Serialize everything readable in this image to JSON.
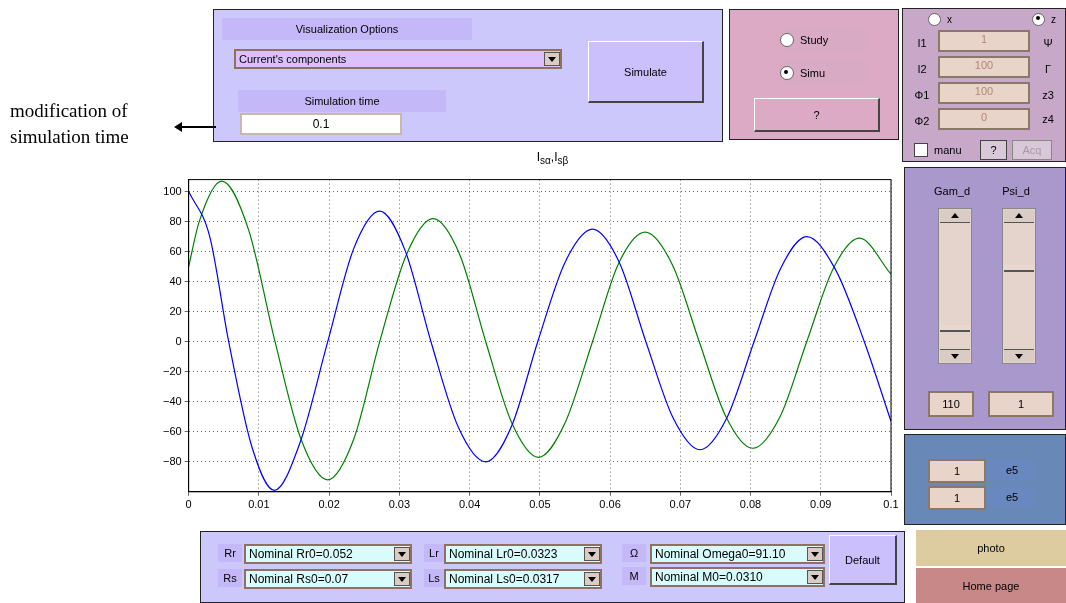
{
  "chart_data": [
    {
      "type": "line",
      "title": "I$_{sα}$,I$_{sβ}$",
      "xlim": [
        0,
        0.1
      ],
      "ylim": [
        -100,
        108
      ],
      "xticks": [
        0,
        0.01,
        0.02,
        0.03,
        0.04,
        0.05,
        0.06,
        0.07,
        0.08,
        0.09,
        0.1
      ],
      "yticks": [
        -80,
        -60,
        -40,
        -20,
        0,
        20,
        40,
        60,
        80,
        100
      ],
      "grid": true,
      "marker": "none",
      "legend": false,
      "series": [
        {
          "color": "#0000ff",
          "x": [
            0,
            0.003,
            0.0057,
            0.009,
            0.0122,
            0.0158,
            0.0198,
            0.0235,
            0.0272,
            0.0308,
            0.0345,
            0.0384,
            0.0423,
            0.046,
            0.0497,
            0.0536,
            0.0575,
            0.0613,
            0.0651,
            0.069,
            0.0728,
            0.0766,
            0.0805,
            0.0843,
            0.088,
            0.0921,
            0.0962,
            0.1
          ],
          "values": [
            100,
            70,
            0,
            -70,
            -99,
            -68,
            0,
            62,
            87,
            61,
            0,
            -57,
            -80,
            -56,
            0,
            53,
            75,
            53,
            0,
            -51,
            -72,
            -51,
            0,
            49,
            70,
            48,
            0,
            -53
          ]
        },
        {
          "color": "#008000",
          "x": [
            0,
            0.0015,
            0.0047,
            0.0085,
            0.0123,
            0.016,
            0.0198,
            0.0235,
            0.0272,
            0.031,
            0.0348,
            0.0386,
            0.0423,
            0.046,
            0.0498,
            0.0536,
            0.0575,
            0.0612,
            0.065,
            0.0689,
            0.0727,
            0.0765,
            0.0803,
            0.0842,
            0.088,
            0.0918,
            0.0955,
            0.1
          ],
          "values": [
            50,
            80,
            107,
            75,
            0,
            -65,
            -92,
            -65,
            0,
            58,
            82,
            58,
            0,
            -54,
            -77,
            -54,
            0,
            52,
            73,
            51,
            0,
            -50,
            -71,
            -50,
            0,
            49,
            69,
            45
          ]
        }
      ]
    },
    {
      "type": "other",
      "annotations": [
        "modification of simulation time",
        "Visualization Options",
        "Current's components",
        "Simulation time",
        "0.1",
        "Simulate",
        "Study",
        "Simu",
        "?",
        "x",
        "z",
        "I1",
        "1",
        "Ψ",
        "I2",
        "100",
        "Γ",
        "Φ1",
        "100",
        "z3",
        "Φ2",
        "0",
        "z4",
        "manu",
        "?",
        "Acq",
        "Gam_d",
        "Psi_d",
        "110",
        "1",
        "1",
        "e5",
        "1",
        "e5",
        "photo",
        "Home page",
        "Rr",
        "Nominal Rr0=0.052",
        "Rs",
        "Nominal Rs0=0.07",
        "Lr",
        "Nominal Lr0=0.0323",
        "Ls",
        "Nominal Ls0=0.0317",
        "Ω",
        "Nominal Omega0=91.10",
        "M",
        "Nominal M0=0.0310",
        "Default"
      ]
    }
  ]
}
